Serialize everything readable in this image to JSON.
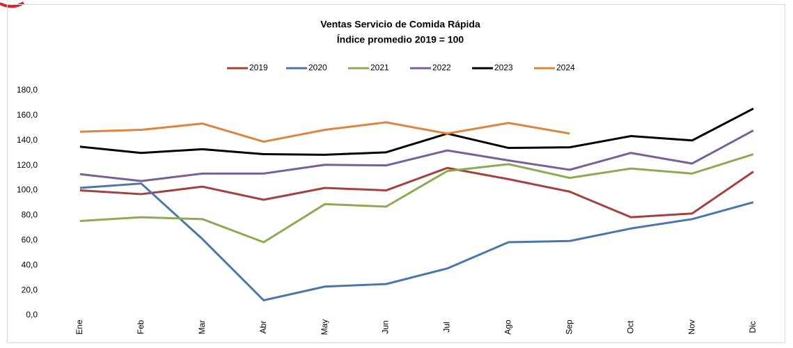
{
  "chart_data": {
    "type": "line",
    "title": "Ventas Servicio de Comida Rápida",
    "subtitle": "Índice promedio 2019 = 100",
    "categories": [
      "Ene",
      "Feb",
      "Mar",
      "Abr",
      "May",
      "Jun",
      "Jul",
      "Ago",
      "Sep",
      "Oct",
      "Nov",
      "Dic"
    ],
    "series": [
      {
        "name": "2019",
        "color": "#a5403d",
        "values": [
          100,
          97,
          103,
          92.5,
          102,
          100,
          118,
          109,
          99,
          78.5,
          81.5,
          115
        ]
      },
      {
        "name": "2020",
        "color": "#4a76ad",
        "values": [
          102,
          105.5,
          61,
          12,
          23,
          25,
          37.5,
          58.5,
          59.5,
          69.5,
          77,
          90.5
        ]
      },
      {
        "name": "2021",
        "color": "#8cab4f",
        "values": [
          75.5,
          78.5,
          77,
          58.5,
          89,
          87,
          115.5,
          121,
          110,
          117.5,
          113.5,
          129
        ]
      },
      {
        "name": "2022",
        "color": "#77609a",
        "values": [
          113,
          107.5,
          113.5,
          113.5,
          120.5,
          120,
          132,
          124,
          116.5,
          130,
          121.5,
          148
        ]
      },
      {
        "name": "2023",
        "color": "#000000",
        "values": [
          135,
          130,
          133,
          129,
          128.5,
          130.5,
          145.5,
          134,
          134.5,
          143.5,
          140,
          165.5
        ]
      },
      {
        "name": "2024",
        "color": "#e0843a",
        "values": [
          147,
          148.5,
          153.5,
          139,
          148.5,
          154.5,
          145.5,
          154,
          145.5,
          null,
          null,
          null
        ]
      }
    ],
    "ylim": [
      0,
      180
    ],
    "yticks": [
      {
        "value": 0,
        "label": "0,0"
      },
      {
        "value": 20,
        "label": "20,0"
      },
      {
        "value": 40,
        "label": "40,0"
      },
      {
        "value": 60,
        "label": "60,0"
      },
      {
        "value": 80,
        "label": "80,0"
      },
      {
        "value": 100,
        "label": "100,0"
      },
      {
        "value": 120,
        "label": "120,0"
      },
      {
        "value": 140,
        "label": "140,0"
      },
      {
        "value": 160,
        "label": "160,0"
      },
      {
        "value": 180,
        "label": "180,0"
      }
    ],
    "legend": "top",
    "grid": false
  }
}
